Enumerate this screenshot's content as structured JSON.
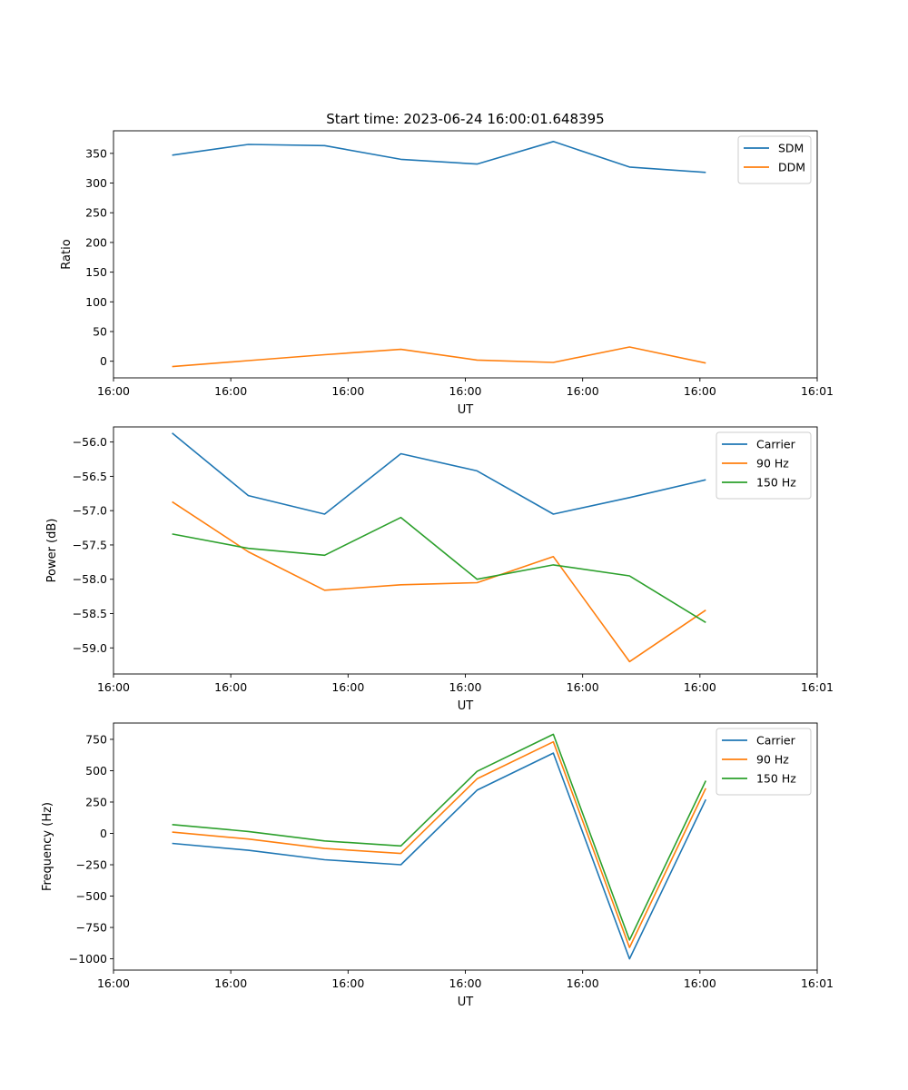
{
  "figure_title": "Start time: 2023-06-24 16:00:01.648395",
  "chart_data": [
    {
      "type": "line",
      "ylabel": "Ratio",
      "xlabel": "UT",
      "xlim": [
        0,
        12
      ],
      "ylim": [
        -28,
        388
      ],
      "x": [
        1,
        2.3,
        3.6,
        4.9,
        6.2,
        7.5,
        8.8,
        10.1
      ],
      "xticks": [
        0,
        2,
        4,
        6,
        8,
        10,
        12
      ],
      "xtick_labels": [
        "16:00",
        "16:00",
        "16:00",
        "16:00",
        "16:00",
        "16:00",
        "16:01"
      ],
      "yticks": [
        0,
        50,
        100,
        150,
        200,
        250,
        300,
        350
      ],
      "ytick_labels": [
        "0",
        "50",
        "100",
        "150",
        "200",
        "250",
        "300",
        "350"
      ],
      "legend_position": "top-right",
      "series": [
        {
          "name": "SDM",
          "color": "#1f77b4",
          "values": [
            347,
            365,
            363,
            340,
            332,
            370,
            327,
            318
          ]
        },
        {
          "name": "DDM",
          "color": "#ff7f0e",
          "values": [
            -9,
            1,
            11,
            20,
            2,
            -2,
            24,
            -3
          ]
        }
      ]
    },
    {
      "type": "line",
      "ylabel": "Power (dB)",
      "xlabel": "UT",
      "xlim": [
        0,
        12
      ],
      "ylim": [
        -59.38,
        -55.78
      ],
      "x": [
        1,
        2.3,
        3.6,
        4.9,
        6.2,
        7.5,
        8.8,
        10.1
      ],
      "xticks": [
        0,
        2,
        4,
        6,
        8,
        10,
        12
      ],
      "xtick_labels": [
        "16:00",
        "16:00",
        "16:00",
        "16:00",
        "16:00",
        "16:00",
        "16:01"
      ],
      "yticks": [
        -56.0,
        -56.5,
        -57.0,
        -57.5,
        -58.0,
        -58.5,
        -59.0
      ],
      "ytick_labels": [
        "−56.0",
        "−56.5",
        "−57.0",
        "−57.5",
        "−58.0",
        "−58.5",
        "−59.0"
      ],
      "legend_position": "top-right",
      "series": [
        {
          "name": "Carrier",
          "color": "#1f77b4",
          "values": [
            -55.87,
            -56.78,
            -57.05,
            -56.17,
            -56.42,
            -57.05,
            -56.81,
            -56.55
          ]
        },
        {
          "name": "90 Hz",
          "color": "#ff7f0e",
          "values": [
            -56.87,
            -57.6,
            -58.16,
            -58.08,
            -58.05,
            -57.67,
            -59.2,
            -58.45
          ]
        },
        {
          "name": "150 Hz",
          "color": "#2ca02c",
          "values": [
            -57.34,
            -57.55,
            -57.65,
            -57.1,
            -58.0,
            -57.79,
            -57.95,
            -58.63
          ]
        }
      ]
    },
    {
      "type": "line",
      "ylabel": "Frequency (Hz)",
      "xlabel": "UT",
      "xlim": [
        0,
        12
      ],
      "ylim": [
        -1090,
        880
      ],
      "x": [
        1,
        2.3,
        3.6,
        4.9,
        6.2,
        7.5,
        8.8,
        10.1
      ],
      "xticks": [
        0,
        2,
        4,
        6,
        8,
        10,
        12
      ],
      "xtick_labels": [
        "16:00",
        "16:00",
        "16:00",
        "16:00",
        "16:00",
        "16:00",
        "16:01"
      ],
      "yticks": [
        750,
        500,
        250,
        0,
        -250,
        -500,
        -750,
        -1000
      ],
      "ytick_labels": [
        "750",
        "500",
        "250",
        "0",
        "−250",
        "−500",
        "−750",
        "−1000"
      ],
      "legend_position": "top-right",
      "series": [
        {
          "name": "Carrier",
          "color": "#1f77b4",
          "values": [
            -80,
            -135,
            -210,
            -250,
            345,
            640,
            -1000,
            270
          ]
        },
        {
          "name": "90 Hz",
          "color": "#ff7f0e",
          "values": [
            10,
            -45,
            -120,
            -160,
            435,
            730,
            -910,
            360
          ]
        },
        {
          "name": "150 Hz",
          "color": "#2ca02c",
          "values": [
            70,
            15,
            -60,
            -100,
            495,
            790,
            -850,
            420
          ]
        }
      ]
    }
  ]
}
